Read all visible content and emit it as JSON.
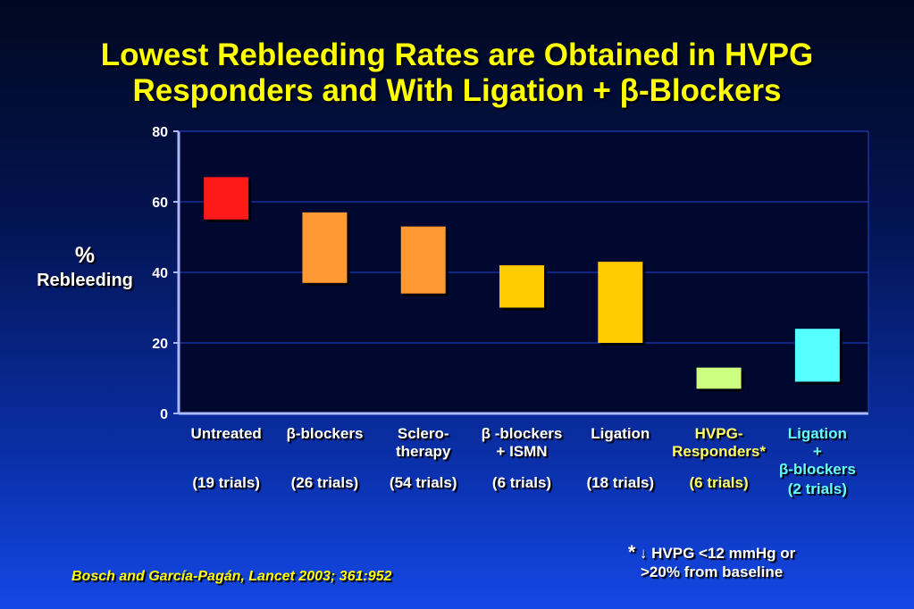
{
  "title": {
    "line1": "Lowest Rebleeding Rates are Obtained in HVPG",
    "line2_prefix": "Responders and With Ligation + ",
    "line2_symbol": "β",
    "line2_suffix": "-Blockers"
  },
  "ylabel": {
    "symbol": "%",
    "text": "Rebleeding"
  },
  "chart_data": {
    "type": "bar",
    "subtype": "floating-range",
    "title": "Lowest Rebleeding Rates are Obtained in HVPG Responders and With Ligation + β-Blockers",
    "ylabel": "% Rebleeding",
    "ylim": [
      0,
      80
    ],
    "yticks": [
      0,
      20,
      40,
      60,
      80
    ],
    "grid": true,
    "categories": [
      {
        "line1": "Untreated",
        "line2": "",
        "trials": "(19 trials)",
        "low": 55,
        "high": 67,
        "color": "#ff1a1a",
        "label_color": "#ffffff"
      },
      {
        "line1": "β-blockers",
        "line2": "",
        "trials": "(26 trials)",
        "low": 37,
        "high": 57,
        "color": "#ff9933",
        "label_color": "#ffffff"
      },
      {
        "line1": "Sclero-",
        "line2": "therapy",
        "trials": "(54 trials)",
        "low": 34,
        "high": 53,
        "color": "#ff9933",
        "label_color": "#ffffff"
      },
      {
        "line1": "β -blockers",
        "line2": "+ ISMN",
        "trials": "(6 trials)",
        "low": 30,
        "high": 42,
        "color": "#ffcc00",
        "label_color": "#ffffff"
      },
      {
        "line1": "Ligation",
        "line2": "",
        "trials": "(18 trials)",
        "low": 20,
        "high": 43,
        "color": "#ffcc00",
        "label_color": "#ffffff"
      },
      {
        "line1": "HVPG-",
        "line2": "Responders*",
        "trials": "(6 trials)",
        "low": 7,
        "high": 13,
        "color": "#ccff80",
        "label_color": "#ffff66"
      },
      {
        "line1": "Ligation",
        "line2": "+",
        "line3": "β-blockers",
        "trials": "(2 trials)",
        "low": 9,
        "high": 24,
        "color": "#55ffff",
        "label_color": "#66ffff"
      }
    ],
    "colors": {
      "axis": "#aab8ff",
      "grid": "#1f3fcf",
      "plot_bg": "#000830"
    }
  },
  "footnote": {
    "star": "*",
    "arrow": "↓",
    "line1": " HVPG <12 mmHg or",
    "line2": ">20% from baseline"
  },
  "citation": "Bosch and García-Pagán, Lancet 2003; 361:952"
}
